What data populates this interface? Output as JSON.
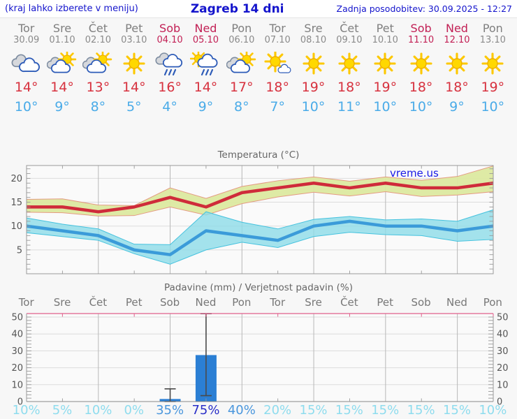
{
  "header": {
    "left_note": "(kraj lahko izberete v meniju)",
    "title": "Zagreb 14 dni",
    "updated": "Zadnja posodobitev: 30.09.2025 - 12:27"
  },
  "days": [
    {
      "name": "Tor",
      "date": "30.09",
      "weekend": false,
      "icon": "cloudy",
      "tmax": "14°",
      "tmin": "10°",
      "pop": "10%",
      "pop_level": "low"
    },
    {
      "name": "Sre",
      "date": "01.10",
      "weekend": false,
      "icon": "partly",
      "tmax": "14°",
      "tmin": "9°",
      "pop": "5%",
      "pop_level": "low"
    },
    {
      "name": "Čet",
      "date": "02.10",
      "weekend": false,
      "icon": "partly",
      "tmax": "13°",
      "tmin": "8°",
      "pop": "10%",
      "pop_level": "low"
    },
    {
      "name": "Pet",
      "date": "03.10",
      "weekend": false,
      "icon": "sunny",
      "tmax": "14°",
      "tmin": "5°",
      "pop": "0%",
      "pop_level": "low"
    },
    {
      "name": "Sob",
      "date": "04.10",
      "weekend": true,
      "icon": "rain",
      "tmax": "16°",
      "tmin": "4°",
      "pop": "35%",
      "pop_level": "mid"
    },
    {
      "name": "Ned",
      "date": "05.10",
      "weekend": true,
      "icon": "sunrain",
      "tmax": "14°",
      "tmin": "9°",
      "pop": "75%",
      "pop_level": "high"
    },
    {
      "name": "Pon",
      "date": "06.10",
      "weekend": false,
      "icon": "partly",
      "tmax": "17°",
      "tmin": "8°",
      "pop": "40%",
      "pop_level": "mid"
    },
    {
      "name": "Tor",
      "date": "07.10",
      "weekend": false,
      "icon": "mostlysunny",
      "tmax": "18°",
      "tmin": "7°",
      "pop": "20%",
      "pop_level": "low"
    },
    {
      "name": "Sre",
      "date": "08.10",
      "weekend": false,
      "icon": "sunny",
      "tmax": "19°",
      "tmin": "10°",
      "pop": "15%",
      "pop_level": "low"
    },
    {
      "name": "Čet",
      "date": "09.10",
      "weekend": false,
      "icon": "sunny",
      "tmax": "18°",
      "tmin": "11°",
      "pop": "15%",
      "pop_level": "low"
    },
    {
      "name": "Pet",
      "date": "10.10",
      "weekend": false,
      "icon": "sunny",
      "tmax": "19°",
      "tmin": "10°",
      "pop": "15%",
      "pop_level": "low"
    },
    {
      "name": "Sob",
      "date": "11.10",
      "weekend": true,
      "icon": "sunny",
      "tmax": "18°",
      "tmin": "10°",
      "pop": "15%",
      "pop_level": "low"
    },
    {
      "name": "Ned",
      "date": "12.10",
      "weekend": true,
      "icon": "sunny",
      "tmax": "18°",
      "tmin": "9°",
      "pop": "15%",
      "pop_level": "low"
    },
    {
      "name": "Pon",
      "date": "13.10",
      "weekend": false,
      "icon": "sunny",
      "tmax": "19°",
      "tmin": "10°",
      "pop": "10%",
      "pop_level": "low"
    }
  ],
  "chart_data": [
    {
      "type": "line",
      "title": "Temperatura (°C)",
      "watermark": "vreme.us",
      "x_labels": [
        "Tor",
        "Sre",
        "Čet",
        "Pet",
        "Sob",
        "Ned",
        "Pon",
        "Tor",
        "Sre",
        "Čet",
        "Pet",
        "Sob",
        "Ned",
        "Pon"
      ],
      "ylim": [
        0,
        22.7
      ],
      "yticks": [
        5,
        10,
        15,
        20
      ],
      "grid": true,
      "series": [
        {
          "name": "max-temperature",
          "color": "#cf2b3a",
          "values": [
            14,
            14,
            13,
            14,
            16,
            14,
            17,
            18,
            19,
            18,
            19,
            18,
            18,
            19
          ]
        },
        {
          "name": "min-temperature",
          "color": "#3b9bd9",
          "values": [
            10,
            9,
            8,
            5,
            4,
            9,
            8,
            7,
            10,
            11,
            10,
            10,
            9,
            10
          ]
        }
      ],
      "bands": [
        {
          "name": "max-range",
          "fill": "#dce9a0",
          "edge": "#e49b82",
          "upper": [
            15.6,
            15.7,
            14.4,
            14.3,
            18.0,
            15.8,
            18.3,
            19.5,
            20.3,
            19.4,
            20.3,
            19.6,
            20.4,
            22.6
          ],
          "lower": [
            12.9,
            12.8,
            12.1,
            12.2,
            14.0,
            12.3,
            14.7,
            16.1,
            17.1,
            16.3,
            17.2,
            16.2,
            16.5,
            17.2
          ]
        },
        {
          "name": "min-range",
          "fill": "#8ddce9",
          "edge": "#45c2de",
          "upper": [
            11.7,
            10.4,
            9.4,
            6.2,
            6.1,
            13.0,
            10.8,
            9.4,
            11.4,
            12.0,
            11.3,
            11.5,
            11.0,
            13.4
          ],
          "lower": [
            8.6,
            7.8,
            7.0,
            4.2,
            2.0,
            5.0,
            6.6,
            5.5,
            7.8,
            8.7,
            8.2,
            8.0,
            6.8,
            7.2
          ]
        }
      ]
    },
    {
      "type": "bar",
      "title": "Padavine (mm) / Verjetnost padavin (%)",
      "categories": [
        "Tor",
        "Sre",
        "Čet",
        "Pet",
        "Sob",
        "Ned",
        "Pon",
        "Tor",
        "Sre",
        "Čet",
        "Pet",
        "Sob",
        "Ned",
        "Pon"
      ],
      "values": [
        0,
        0,
        0,
        0,
        1.5,
        27.5,
        0,
        0,
        0,
        0,
        0,
        0,
        0,
        0
      ],
      "whisker_low": [
        null,
        null,
        null,
        null,
        0,
        3.5,
        null,
        null,
        null,
        null,
        null,
        null,
        null,
        null
      ],
      "whisker_high": [
        null,
        null,
        null,
        null,
        7.5,
        52,
        null,
        null,
        null,
        null,
        null,
        null,
        null,
        null
      ],
      "probabilities": [
        "10%",
        "5%",
        "10%",
        "0%",
        "35%",
        "75%",
        "40%",
        "20%",
        "15%",
        "15%",
        "15%",
        "15%",
        "15%",
        "10%"
      ],
      "ylim": [
        0,
        52
      ],
      "yticks": [
        0,
        10,
        20,
        30,
        40,
        50
      ],
      "bar_color": "#2b7fd4",
      "whisker_color": "#4a4a4a",
      "grid": true
    }
  ],
  "colors": {
    "accent_blue": "#1414cc",
    "weekend_red": "#c22055",
    "tmax_red": "#d7323f",
    "tmin_blue": "#4aabe8",
    "pop_low": "#8edcee",
    "pop_mid": "#4b97dd",
    "pop_high": "#2a2fc8"
  }
}
